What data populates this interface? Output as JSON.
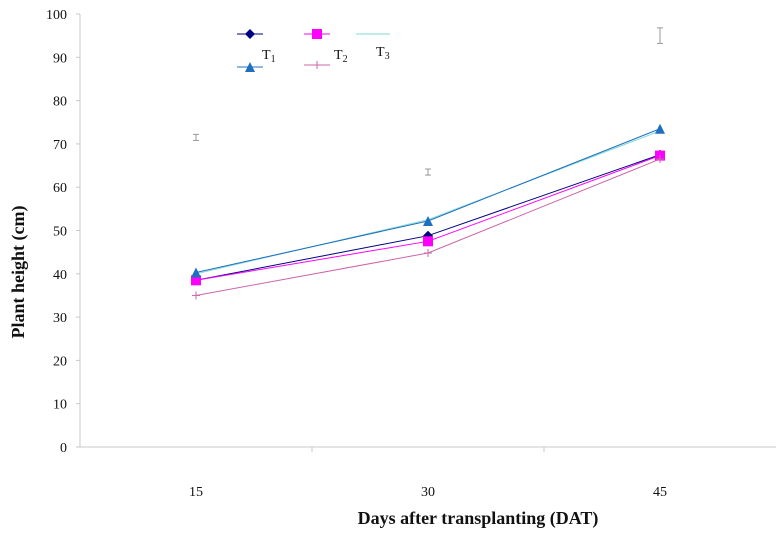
{
  "chart_data": {
    "type": "line",
    "xlabel": "Days after transplanting (DAT)",
    "ylabel": "Plant height (cm)",
    "x": [
      15,
      30,
      45
    ],
    "x_tick_labels": [
      "15",
      "30",
      "45"
    ],
    "y_ticks": [
      0,
      10,
      20,
      30,
      40,
      50,
      60,
      70,
      80,
      90,
      100
    ],
    "ylim": [
      0,
      100
    ],
    "grid": false,
    "legend_position": "top-left",
    "series": [
      {
        "name": "T1",
        "label_main": "T",
        "label_sub": "1",
        "marker": "diamond",
        "color": "#000080",
        "values": [
          38.5,
          48.8,
          67.5
        ]
      },
      {
        "name": "T2",
        "label_main": "T",
        "label_sub": "2",
        "marker": "square",
        "color": "#ff00ff",
        "values": [
          38.5,
          47.5,
          67.3
        ]
      },
      {
        "name": "T3",
        "label_main": "T",
        "label_sub": "3",
        "marker": "none",
        "color": "#7fd8d8",
        "values": [
          40.0,
          52.5,
          73.0
        ]
      },
      {
        "name": "",
        "marker": "triangle",
        "color": "#1f6fbf",
        "values": [
          40.3,
          52.2,
          73.5
        ]
      },
      {
        "name": "",
        "marker": "plus",
        "color": "#cc66aa",
        "values": [
          35.0,
          44.8,
          66.5
        ]
      }
    ],
    "error_bars": [
      {
        "x": 15,
        "y": 71.5,
        "low": 70.8,
        "high": 72.2
      },
      {
        "x": 30,
        "y": 63.5,
        "low": 62.8,
        "high": 64.2
      },
      {
        "x": 45,
        "y": 95.0,
        "low": 93.2,
        "high": 96.8
      }
    ]
  }
}
